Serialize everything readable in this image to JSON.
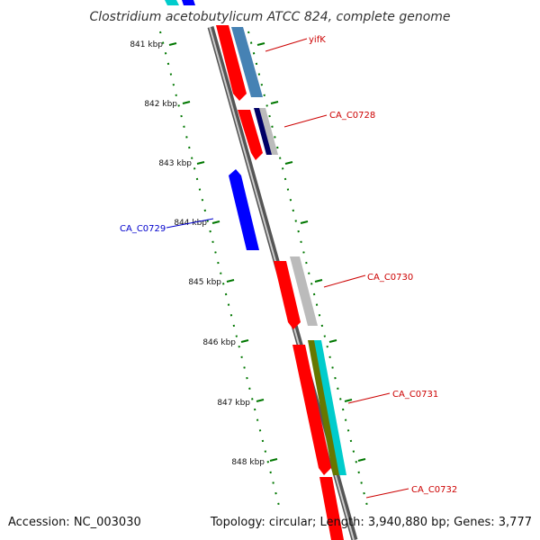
{
  "title": "Clostridium acetobutylicum ATCC 824, complete genome",
  "footer": {
    "accession": "Accession: NC_003030",
    "summary": "Topology: circular; Length: 3,940,880 bp; Genes: 3,777"
  },
  "ticks": [
    "841 kbp",
    "842 kbp",
    "843 kbp",
    "844 kbp",
    "845 kbp",
    "846 kbp",
    "847 kbp",
    "848 kbp"
  ],
  "genes": [
    {
      "label": "yifK",
      "strand": "reverse",
      "color": "#cc0000"
    },
    {
      "label": "CA_C0728",
      "strand": "reverse",
      "color": "#cc0000"
    },
    {
      "label": "CA_C0729",
      "strand": "forward",
      "color": "#0000cc"
    },
    {
      "label": "CA_C0730",
      "strand": "reverse",
      "color": "#cc0000"
    },
    {
      "label": "CA_C0731",
      "strand": "reverse",
      "color": "#cc0000"
    },
    {
      "label": "CA_C0732",
      "strand": "reverse",
      "color": "#cc0000"
    }
  ],
  "colors": {
    "backbone": "#888888",
    "cds_reverse": "#ff0000",
    "cds_forward": "#0000ff",
    "tick": "#007700",
    "blast_cyan": "#00cccc",
    "blast_steel": "#4682b4",
    "blast_gray": "#bbbbbb",
    "blast_navy": "#000066",
    "blast_olive": "#667700"
  }
}
